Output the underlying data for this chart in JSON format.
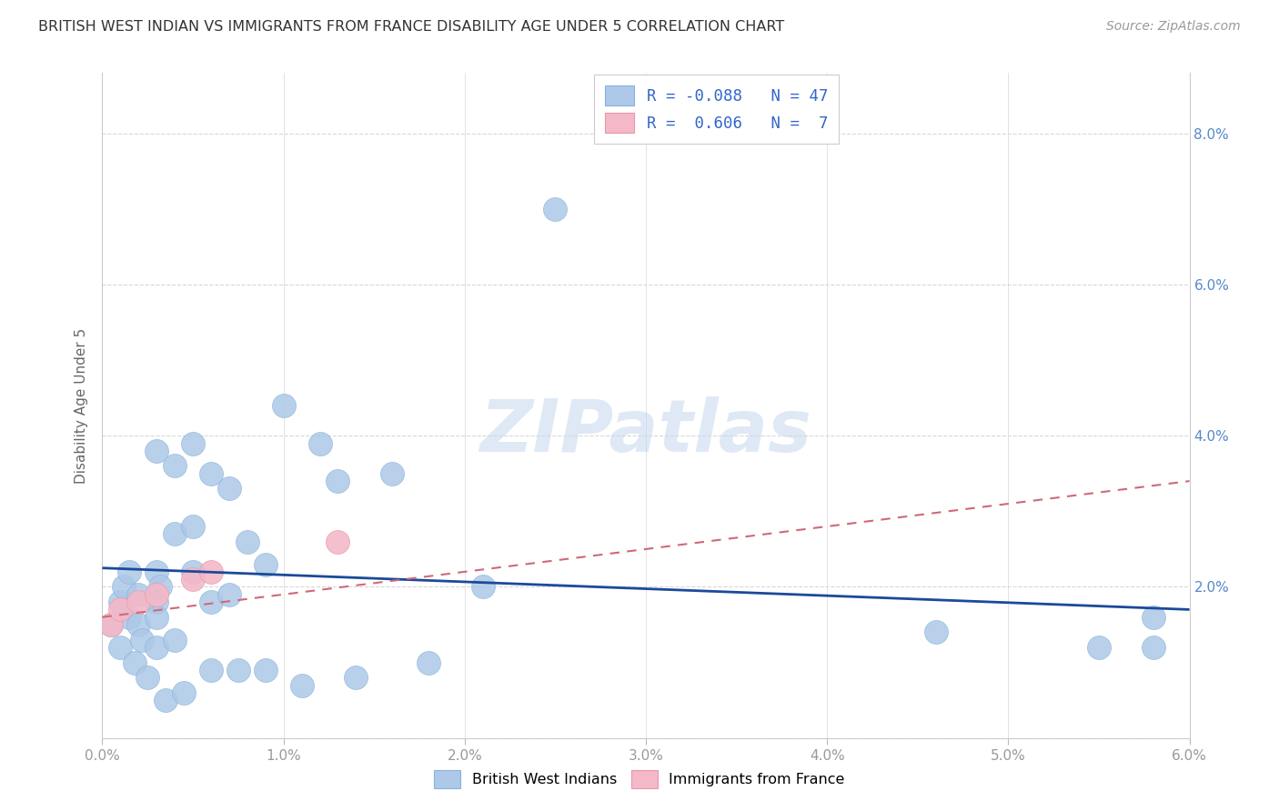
{
  "title": "BRITISH WEST INDIAN VS IMMIGRANTS FROM FRANCE DISABILITY AGE UNDER 5 CORRELATION CHART",
  "source": "Source: ZipAtlas.com",
  "ylabel": "Disability Age Under 5",
  "xlim": [
    0.0,
    0.06
  ],
  "ylim": [
    0.0,
    0.088
  ],
  "xticks": [
    0.0,
    0.01,
    0.02,
    0.03,
    0.04,
    0.05,
    0.06
  ],
  "yticks": [
    0.0,
    0.02,
    0.04,
    0.06,
    0.08
  ],
  "xticklabels": [
    "0.0%",
    "1.0%",
    "2.0%",
    "3.0%",
    "4.0%",
    "5.0%",
    "6.0%"
  ],
  "right_yticklabels": [
    "",
    "2.0%",
    "4.0%",
    "6.0%",
    "8.0%"
  ],
  "blue_color": "#adc8e8",
  "pink_color": "#f4b8c8",
  "blue_line_color": "#1a4a9a",
  "pink_line_color": "#d06878",
  "watermark_text": "ZIPatlas",
  "background_color": "#ffffff",
  "grid_color": "#d8d8d8",
  "bwi_x": [
    0.0005,
    0.001,
    0.001,
    0.0012,
    0.0015,
    0.0015,
    0.0018,
    0.002,
    0.002,
    0.0022,
    0.0025,
    0.003,
    0.003,
    0.003,
    0.003,
    0.003,
    0.0032,
    0.0035,
    0.004,
    0.004,
    0.004,
    0.0045,
    0.005,
    0.005,
    0.005,
    0.006,
    0.006,
    0.006,
    0.007,
    0.007,
    0.0075,
    0.008,
    0.009,
    0.009,
    0.01,
    0.011,
    0.012,
    0.013,
    0.014,
    0.016,
    0.018,
    0.021,
    0.025,
    0.046,
    0.055,
    0.058,
    0.058
  ],
  "bwi_y": [
    0.015,
    0.018,
    0.012,
    0.02,
    0.022,
    0.016,
    0.01,
    0.019,
    0.015,
    0.013,
    0.008,
    0.022,
    0.018,
    0.038,
    0.012,
    0.016,
    0.02,
    0.005,
    0.036,
    0.027,
    0.013,
    0.006,
    0.028,
    0.022,
    0.039,
    0.035,
    0.018,
    0.009,
    0.033,
    0.019,
    0.009,
    0.026,
    0.023,
    0.009,
    0.044,
    0.007,
    0.039,
    0.034,
    0.008,
    0.035,
    0.01,
    0.02,
    0.07,
    0.014,
    0.012,
    0.012,
    0.016
  ],
  "france_x": [
    0.0005,
    0.001,
    0.002,
    0.003,
    0.005,
    0.006,
    0.013
  ],
  "france_y": [
    0.015,
    0.017,
    0.018,
    0.019,
    0.021,
    0.022,
    0.026
  ],
  "bwi_line_x": [
    0.0,
    0.06
  ],
  "bwi_line_y": [
    0.0225,
    0.017
  ],
  "france_line_x": [
    0.0,
    0.06
  ],
  "france_line_y": [
    0.016,
    0.034
  ],
  "legend_text1": "R = -0.088   N = 47",
  "legend_text2": "R =  0.606   N =  7",
  "legend_color": "#3366cc"
}
